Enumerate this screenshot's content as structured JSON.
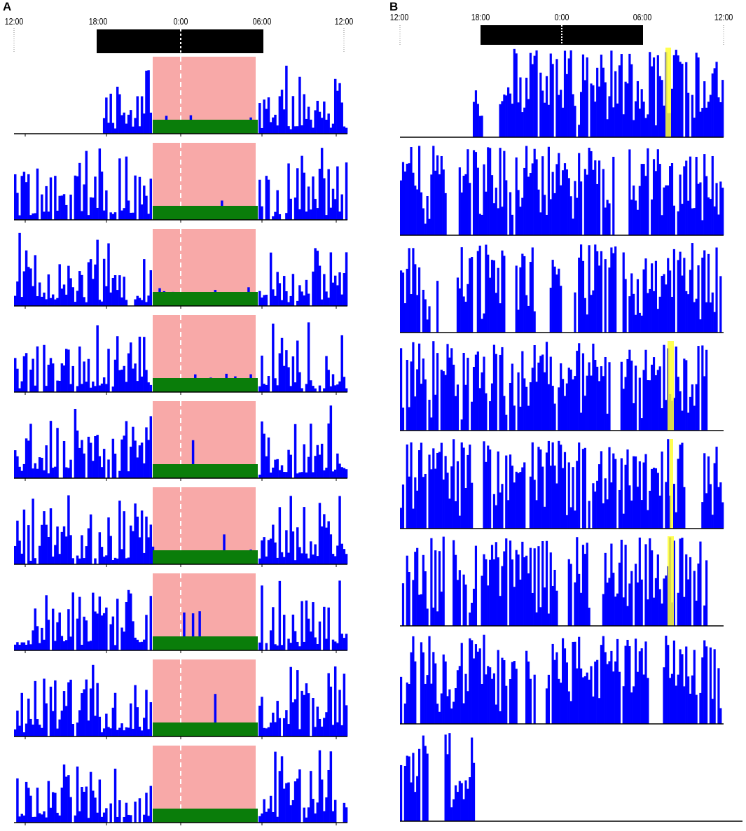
{
  "panels": [
    {
      "letter": "A",
      "tick_labels": [
        "12:00",
        "18:00",
        "0:00",
        "06:00",
        "12:00"
      ],
      "dark_phase": {
        "start": "18:00",
        "end": "06:00"
      },
      "colors": {
        "activity": "#0000ff",
        "night_shading": "#f8a9a8",
        "sleep_bar": "#0a7d0a",
        "dark_bar": "#000000"
      }
    },
    {
      "letter": "B",
      "tick_labels": [
        "12:00",
        "18:00",
        "0:00",
        "06:00",
        "12:00"
      ],
      "dark_phase": {
        "start": "18:00",
        "end": "06:00"
      },
      "colors": {
        "activity": "#0000ff",
        "highlight": "#ffff33",
        "dark_bar": "#000000"
      }
    }
  ],
  "chart_data": [
    {
      "type": "bar",
      "panel": "A",
      "x_axis": {
        "start": "12:00",
        "end": "12:00 (+24h)",
        "ticks": [
          "12:00",
          "18:00",
          "0:00",
          "06:00",
          "12:00"
        ]
      },
      "days": 9,
      "series": [
        {
          "values_per_day": "actogram activity counts (qualitative)"
        }
      ],
      "annotations": {
        "shaded_interval": [
          "21:00",
          "05:00"
        ],
        "sleep_marker_interval": [
          "21:00",
          "05:00"
        ]
      }
    },
    {
      "type": "bar",
      "panel": "B",
      "x_axis": {
        "start": "12:00",
        "end": "12:00 (+24h)",
        "ticks": [
          "12:00",
          "18:00",
          "0:00",
          "06:00",
          "12:00"
        ]
      },
      "days": 8,
      "series": [
        {
          "values_per_day": "actogram activity counts (qualitative)"
        }
      ],
      "annotations": {
        "highlight_time": "07:40"
      }
    }
  ]
}
